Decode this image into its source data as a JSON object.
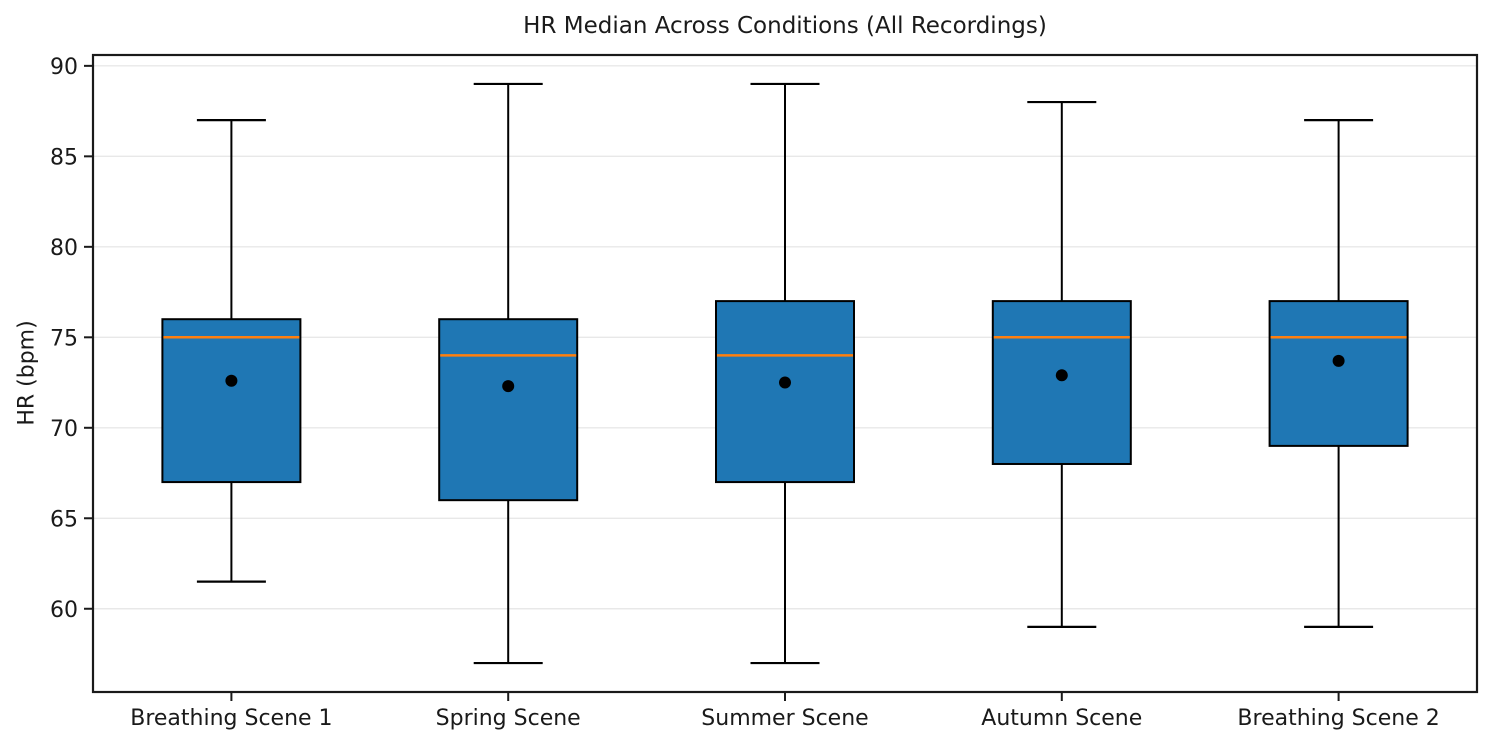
{
  "chart_data": {
    "type": "boxplot",
    "title": "HR Median Across Conditions (All Recordings)",
    "ylabel": "HR (bpm)",
    "xlabel": "",
    "categories": [
      "Breathing Scene 1",
      "Spring Scene",
      "Summer Scene",
      "Autumn Scene",
      "Breathing Scene 2"
    ],
    "series": [
      {
        "name": "Breathing Scene 1",
        "whisker_low": 61.5,
        "q1": 67,
        "median": 75,
        "q3": 76,
        "whisker_high": 87,
        "mean": 72.6
      },
      {
        "name": "Spring Scene",
        "whisker_low": 57,
        "q1": 66,
        "median": 74,
        "q3": 76,
        "whisker_high": 89,
        "mean": 72.3
      },
      {
        "name": "Summer Scene",
        "whisker_low": 57,
        "q1": 67,
        "median": 74,
        "q3": 77,
        "whisker_high": 89,
        "mean": 72.5
      },
      {
        "name": "Autumn Scene",
        "whisker_low": 59,
        "q1": 68,
        "median": 75,
        "q3": 77,
        "whisker_high": 88,
        "mean": 72.9
      },
      {
        "name": "Breathing Scene 2",
        "whisker_low": 59,
        "q1": 69,
        "median": 75,
        "q3": 77,
        "whisker_high": 87,
        "mean": 73.7
      }
    ],
    "yticks": [
      60,
      65,
      70,
      75,
      80,
      85,
      90
    ],
    "ylim": [
      55.4,
      90.6
    ],
    "grid": "horizontal",
    "legend_position": "none",
    "colors": {
      "box_fill": "#1f77b4",
      "box_edge": "#000000",
      "median_line": "#ff7f0e",
      "mean_marker": "#000000",
      "whisker": "#000000",
      "grid": "#e8e8e8",
      "spine": "#1a1a1a",
      "text": "#1a1a1a",
      "background": "#ffffff"
    }
  }
}
